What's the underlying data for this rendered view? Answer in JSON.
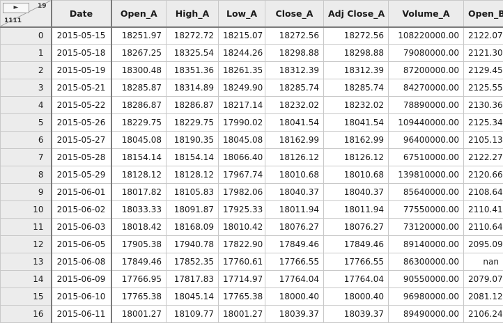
{
  "table": {
    "corner": {
      "top_label": "19",
      "bottom_label": "1111",
      "toggle_icon": "triangle-right-icon"
    },
    "columns": [
      "Date",
      "Open_A",
      "High_A",
      "Low_A",
      "Close_A",
      "Adj Close_A",
      "Volume_A",
      "Open_B"
    ],
    "rows": [
      {
        "index": "0",
        "cells": [
          "2015-05-15",
          "18251.97",
          "18272.72",
          "18215.07",
          "18272.56",
          "18272.56",
          "108220000.00",
          "2122.07"
        ]
      },
      {
        "index": "1",
        "cells": [
          "2015-05-18",
          "18267.25",
          "18325.54",
          "18244.26",
          "18298.88",
          "18298.88",
          "79080000.00",
          "2121.30"
        ]
      },
      {
        "index": "2",
        "cells": [
          "2015-05-19",
          "18300.48",
          "18351.36",
          "18261.35",
          "18312.39",
          "18312.39",
          "87200000.00",
          "2129.45"
        ]
      },
      {
        "index": "3",
        "cells": [
          "2015-05-21",
          "18285.87",
          "18314.89",
          "18249.90",
          "18285.74",
          "18285.74",
          "84270000.00",
          "2125.55"
        ]
      },
      {
        "index": "4",
        "cells": [
          "2015-05-22",
          "18286.87",
          "18286.87",
          "18217.14",
          "18232.02",
          "18232.02",
          "78890000.00",
          "2130.36"
        ]
      },
      {
        "index": "5",
        "cells": [
          "2015-05-26",
          "18229.75",
          "18229.75",
          "17990.02",
          "18041.54",
          "18041.54",
          "109440000.00",
          "2125.34"
        ]
      },
      {
        "index": "6",
        "cells": [
          "2015-05-27",
          "18045.08",
          "18190.35",
          "18045.08",
          "18162.99",
          "18162.99",
          "96400000.00",
          "2105.13"
        ]
      },
      {
        "index": "7",
        "cells": [
          "2015-05-28",
          "18154.14",
          "18154.14",
          "18066.40",
          "18126.12",
          "18126.12",
          "67510000.00",
          "2122.27"
        ]
      },
      {
        "index": "8",
        "cells": [
          "2015-05-29",
          "18128.12",
          "18128.12",
          "17967.74",
          "18010.68",
          "18010.68",
          "139810000.00",
          "2120.66"
        ]
      },
      {
        "index": "9",
        "cells": [
          "2015-06-01",
          "18017.82",
          "18105.83",
          "17982.06",
          "18040.37",
          "18040.37",
          "85640000.00",
          "2108.64"
        ]
      },
      {
        "index": "10",
        "cells": [
          "2015-06-02",
          "18033.33",
          "18091.87",
          "17925.33",
          "18011.94",
          "18011.94",
          "77550000.00",
          "2110.41"
        ]
      },
      {
        "index": "11",
        "cells": [
          "2015-06-03",
          "18018.42",
          "18168.09",
          "18010.42",
          "18076.27",
          "18076.27",
          "73120000.00",
          "2110.64"
        ]
      },
      {
        "index": "12",
        "cells": [
          "2015-06-05",
          "17905.38",
          "17940.78",
          "17822.90",
          "17849.46",
          "17849.46",
          "89140000.00",
          "2095.09"
        ]
      },
      {
        "index": "13",
        "cells": [
          "2015-06-08",
          "17849.46",
          "17852.35",
          "17760.61",
          "17766.55",
          "17766.55",
          "86300000.00",
          "nan"
        ]
      },
      {
        "index": "14",
        "cells": [
          "2015-06-09",
          "17766.95",
          "17817.83",
          "17714.97",
          "17764.04",
          "17764.04",
          "90550000.00",
          "2079.07"
        ]
      },
      {
        "index": "15",
        "cells": [
          "2015-06-10",
          "17765.38",
          "18045.14",
          "17765.38",
          "18000.40",
          "18000.40",
          "96980000.00",
          "2081.12"
        ]
      },
      {
        "index": "16",
        "cells": [
          "2015-06-11",
          "18001.27",
          "18109.77",
          "18001.27",
          "18039.37",
          "18039.37",
          "89490000.00",
          "2106.24"
        ]
      }
    ]
  }
}
